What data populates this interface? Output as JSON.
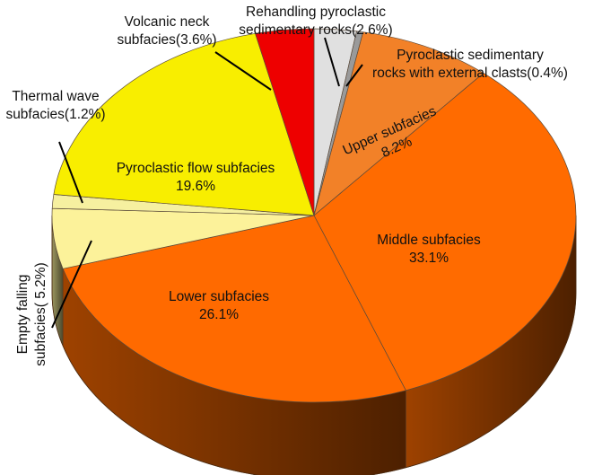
{
  "chart_data": {
    "type": "pie",
    "style": "3d",
    "slices": [
      {
        "label_lines": [
          "Rehandling pyroclastic",
          "sedimentary rocks(2.6%)"
        ],
        "value": 2.6,
        "color": "#e0e0e0"
      },
      {
        "label_lines": [
          "Pyroclastic sedimentary",
          "rocks with external clasts(0.4%)"
        ],
        "value": 0.4,
        "color": "#9a9a9a"
      },
      {
        "label_lines": [
          "Upper subfacies",
          "8.2%"
        ],
        "value": 8.2,
        "color": "#f28128"
      },
      {
        "label_lines": [
          "Middle subfacies",
          "33.1%"
        ],
        "value": 33.1,
        "color": "#ff6b00"
      },
      {
        "label_lines": [
          "Lower subfacies",
          "26.1%"
        ],
        "value": 26.1,
        "color": "#ff6a00"
      },
      {
        "label_lines": [
          "Empty falling",
          "subfacies( 5.2%)"
        ],
        "value": 5.2,
        "color": "#fcf29a"
      },
      {
        "label_lines": [
          "Thermal wave",
          "subfacies(1.2%)"
        ],
        "value": 1.2,
        "color": "#f6f0a0"
      },
      {
        "label_lines": [
          "Pyroclastic flow subfacies",
          "19.6%"
        ],
        "value": 19.6,
        "color": "#f8ee00"
      },
      {
        "label_lines": [
          "Volcanic neck",
          "subfacies(3.6%)"
        ],
        "value": 3.6,
        "color": "#ee0000"
      }
    ]
  }
}
